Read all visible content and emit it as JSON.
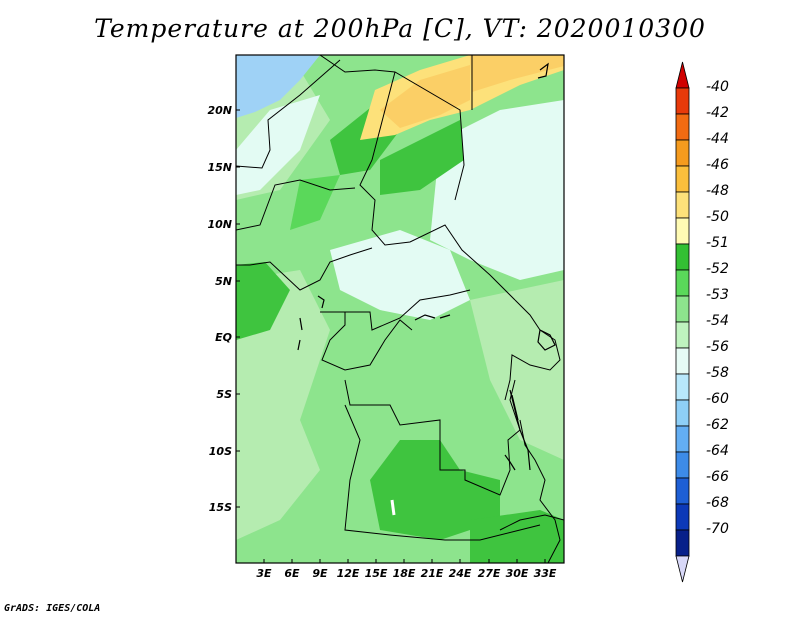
{
  "title": "Temperature at 200hPa [C], VT: 2020010300",
  "credit": "GrADS: IGES/COLA",
  "lat_labels": [
    "20N",
    "15N",
    "10N",
    "5N",
    "EQ",
    "5S",
    "10S",
    "15S"
  ],
  "lon_labels": [
    "3E",
    "6E",
    "9E",
    "12E",
    "15E",
    "18E",
    "21E",
    "24E",
    "27E",
    "30E",
    "33E"
  ],
  "colorbar": {
    "labels": [
      "-40",
      "-42",
      "-44",
      "-46",
      "-48",
      "-50",
      "-51",
      "-52",
      "-53",
      "-54",
      "-56",
      "-58",
      "-60",
      "-62",
      "-64",
      "-66",
      "-68",
      "-70"
    ],
    "colors": [
      "#d00000",
      "#e83a0a",
      "#f26b12",
      "#f59b1e",
      "#fbbf3c",
      "#fde17a",
      "#fffbb4",
      "#33c033",
      "#5ad85a",
      "#8de48d",
      "#bff3bf",
      "#e6fbf5",
      "#b8e8fb",
      "#8ecff7",
      "#63aef3",
      "#3d8be8",
      "#1e5fd5",
      "#0c39b8",
      "#07208a",
      "#04124e"
    ]
  }
}
